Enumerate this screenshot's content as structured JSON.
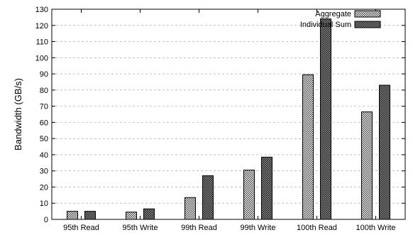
{
  "chart_data": {
    "type": "bar",
    "categories": [
      "95th Read",
      "95th Write",
      "99th Read",
      "99th Write",
      "100th Read",
      "100th Write"
    ],
    "series": [
      {
        "name": "Aggregate",
        "values": [
          5,
          4.5,
          13.5,
          30.5,
          89.5,
          66.5
        ],
        "pattern": "checker-light"
      },
      {
        "name": "Individual Sum",
        "values": [
          5,
          6.5,
          27,
          38.5,
          124,
          83
        ],
        "pattern": "checker-dark"
      }
    ],
    "ylabel": "Bandwidth (GB/s)",
    "xlabel": "",
    "ylim": [
      0,
      130
    ],
    "yticks": [
      0,
      10,
      20,
      30,
      40,
      50,
      60,
      70,
      80,
      90,
      100,
      110,
      120,
      130
    ],
    "grid": true,
    "legend": "top-right"
  }
}
